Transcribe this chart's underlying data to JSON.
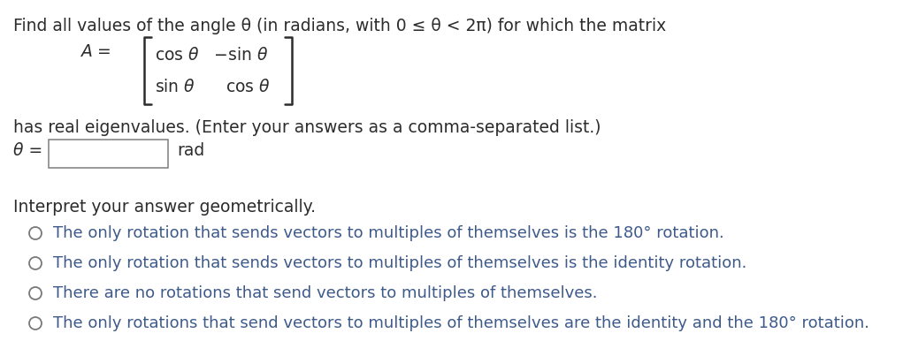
{
  "bg_color": "#ffffff",
  "text_color": "#3d5a8a",
  "title_color": "#2c2c2c",
  "title_line": "Find all values of the angle θ (in radians, with 0 ≤ θ < 2π) for which the matrix",
  "eigenvalue_line": "has real eigenvalues. (Enter your answers as a comma-separated list.)",
  "theta_label": "θ =",
  "rad_label": "rad",
  "interpret_label": "Interpret your answer geometrically.",
  "options": [
    "The only rotation that sends vectors to multiples of themselves is the 180° rotation.",
    "The only rotation that sends vectors to multiples of themselves is the identity rotation.",
    "There are no rotations that send vectors to multiples of themselves.",
    "The only rotations that send vectors to multiples of themselves are the identity and the 180° rotation."
  ],
  "font_size_title": 13.5,
  "font_size_math": 13.5,
  "font_size_options": 13.0,
  "radio_color": "#7a7a7a",
  "box_edge_color": "#888888"
}
